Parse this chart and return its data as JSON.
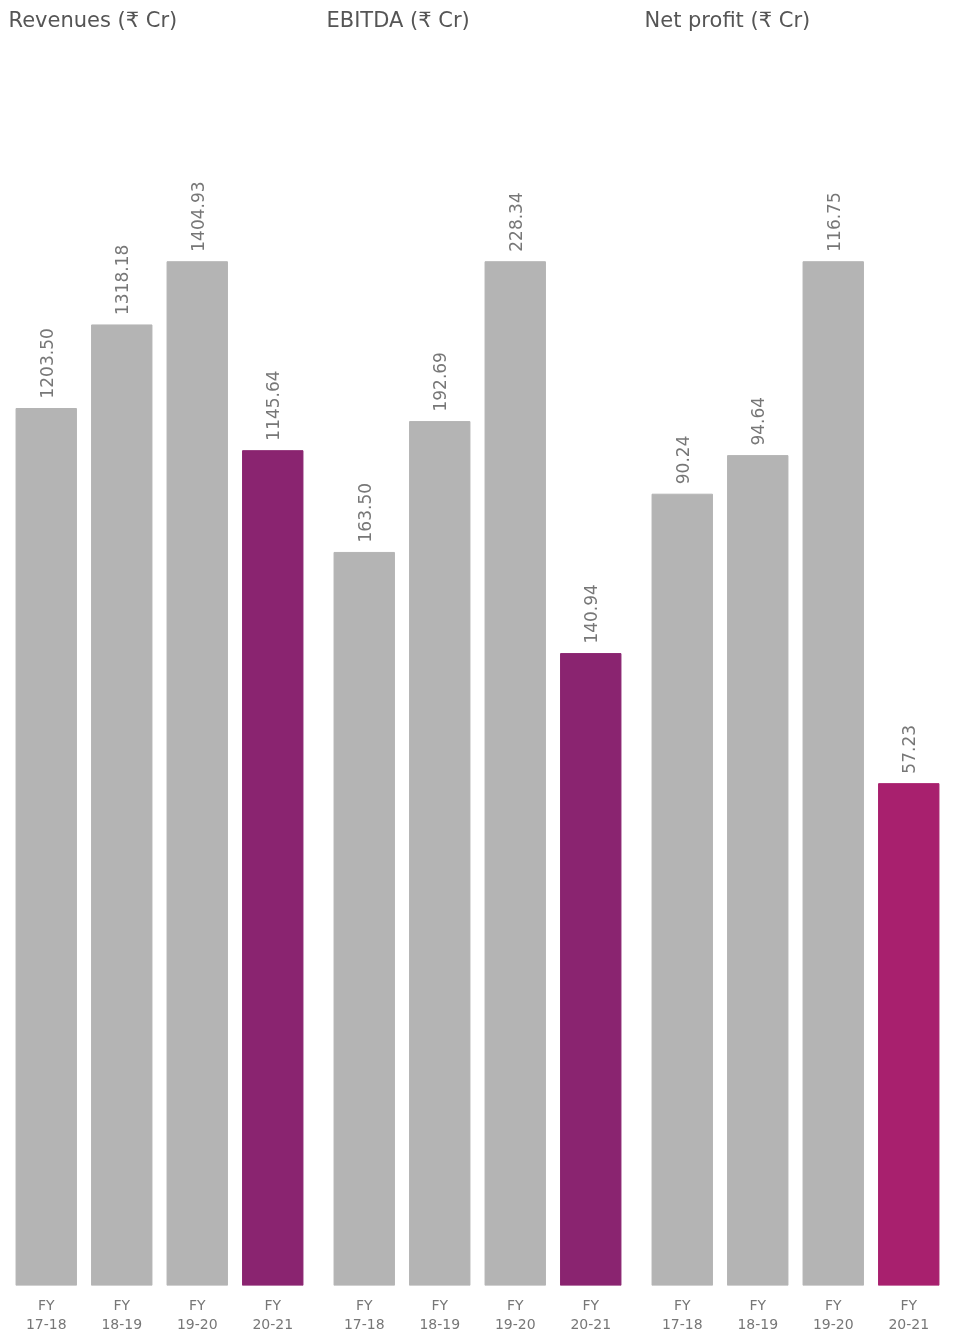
{
  "chart_data": [
    {
      "type": "bar",
      "title": "Revenues (₹ Cr)",
      "categories": [
        "FY 17-18",
        "FY 18-19",
        "FY 19-20",
        "FY 20-21"
      ],
      "values": [
        1203.5,
        1318.18,
        1404.93,
        1145.64
      ],
      "value_labels": [
        "1203.50",
        "1318.18",
        "1404.93",
        "1145.64"
      ],
      "colors": [
        "#b4b4b4",
        "#b4b4b4",
        "#b4b4b4",
        "#8a2470"
      ]
    },
    {
      "type": "bar",
      "title": "EBITDA (₹ Cr)",
      "categories": [
        "FY 17-18",
        "FY 18-19",
        "FY 19-20",
        "FY 20-21"
      ],
      "values": [
        163.5,
        192.69,
        228.34,
        140.94
      ],
      "value_labels": [
        "163.50",
        "192.69",
        "228.34",
        "140.94"
      ],
      "colors": [
        "#b4b4b4",
        "#b4b4b4",
        "#b4b4b4",
        "#8a2470"
      ]
    },
    {
      "type": "bar",
      "title": "Net profit (₹ Cr)",
      "categories": [
        "FY 17-18",
        "FY 18-19",
        "FY 19-20",
        "FY 20-21"
      ],
      "values": [
        90.24,
        94.64,
        116.75,
        57.23
      ],
      "value_labels": [
        "90.24",
        "94.64",
        "116.75",
        "57.23"
      ],
      "colors": [
        "#b4b4b4",
        "#b4b4b4",
        "#b4b4b4",
        "#a8206e"
      ]
    }
  ]
}
